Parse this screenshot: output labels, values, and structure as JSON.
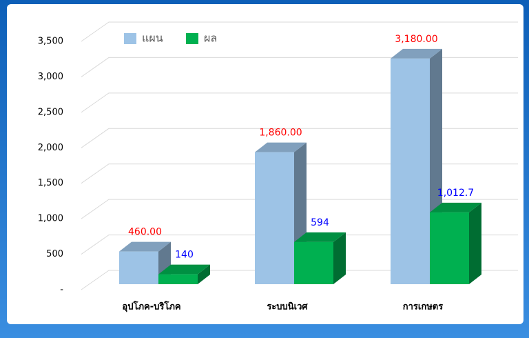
{
  "chart_data": {
    "type": "bar3d",
    "categories": [
      "อุปโภค-บริโภค",
      "ระบบนิเวศ",
      "การเกษตร"
    ],
    "series": [
      {
        "name": "แผน",
        "color": "#9dc3e6",
        "values": [
          460,
          1860,
          3180
        ],
        "value_labels": [
          "460.00",
          "1,860.00",
          "3,180.00"
        ],
        "label_color": "#ff0000"
      },
      {
        "name": "ผล",
        "color": "#00b050",
        "values": [
          140,
          594,
          1012.7
        ],
        "value_labels": [
          "140",
          "594",
          "1,012.7"
        ],
        "label_color": "#0000ff"
      }
    ],
    "ylim": [
      0,
      3500
    ],
    "yticks": [
      {
        "value": 0,
        "label": "-"
      },
      500,
      {
        "value": 1000,
        "label": "1,000"
      },
      {
        "value": 1500,
        "label": "1,500"
      },
      {
        "value": 2000,
        "label": "2,000"
      },
      {
        "value": 2500,
        "label": "2,500"
      },
      {
        "value": 3000,
        "label": "3,000"
      },
      {
        "value": 3500,
        "label": "3,500"
      }
    ],
    "grid": true,
    "legend": "top-left"
  }
}
